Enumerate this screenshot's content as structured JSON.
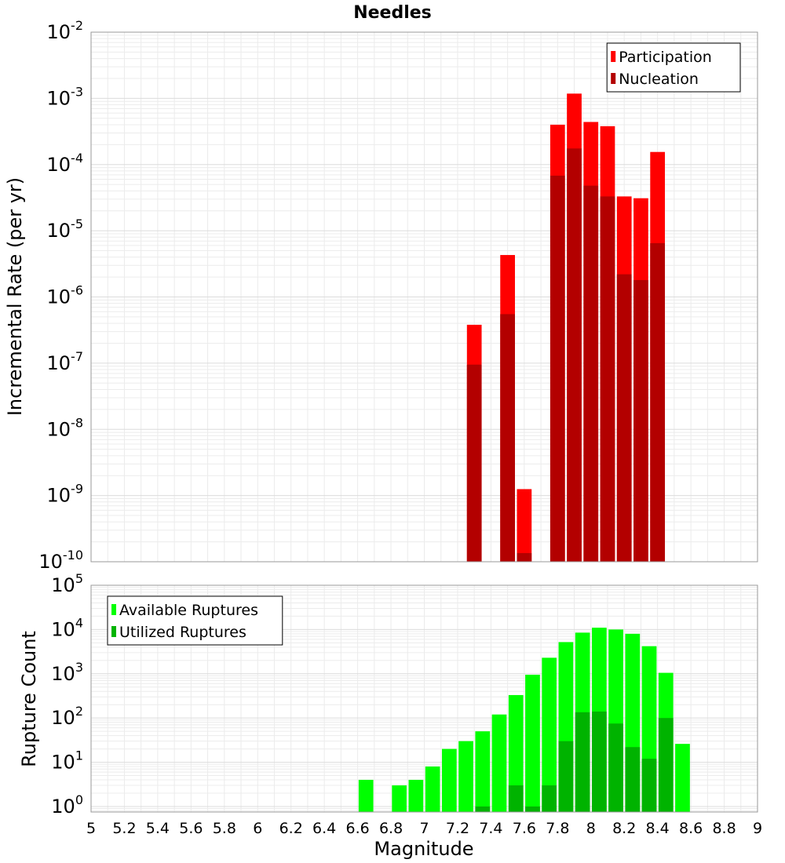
{
  "title": "Needles",
  "x_axis_label": "Magnitude",
  "chart_data": [
    {
      "type": "bar",
      "ylabel": "Incremental Rate (per yr)",
      "y_scale": "log",
      "ylim": [
        1e-10,
        0.01
      ],
      "xlim": [
        5,
        9
      ],
      "grid": true,
      "legend_position": "top-right",
      "x": [
        7.3,
        7.4,
        7.5,
        7.6,
        7.7,
        7.8,
        7.9,
        8.0,
        8.1,
        8.2,
        8.3,
        8.4,
        8.5
      ],
      "series": [
        {
          "name": "Participation",
          "color": "#ff0000",
          "values": [
            3.8e-07,
            null,
            4.3e-06,
            1.25e-09,
            null,
            0.0004,
            0.00118,
            0.00044,
            0.00038,
            3.3e-05,
            3.1e-05,
            0.000155,
            null
          ]
        },
        {
          "name": "Nucleation",
          "color": "#b30000",
          "values": [
            9.5e-08,
            null,
            5.5e-07,
            1.35e-10,
            null,
            6.8e-05,
            0.000175,
            4.8e-05,
            3.3e-05,
            2.2e-06,
            1.8e-06,
            6.5e-06,
            null
          ]
        }
      ]
    },
    {
      "type": "bar",
      "ylabel": "Rupture Count",
      "y_scale": "log",
      "ylim": [
        0.75,
        100000
      ],
      "xlim": [
        5,
        9
      ],
      "grid": true,
      "legend_position": "top-left",
      "x": [
        6.65,
        6.75,
        6.85,
        6.95,
        7.05,
        7.15,
        7.25,
        7.35,
        7.45,
        7.55,
        7.65,
        7.75,
        7.85,
        7.95,
        8.05,
        8.15,
        8.25,
        8.35,
        8.45,
        8.55
      ],
      "series": [
        {
          "name": "Available Ruptures",
          "color": "#00ff00",
          "values": [
            4,
            null,
            3,
            4,
            8,
            20,
            30,
            50,
            120,
            330,
            950,
            2300,
            5200,
            8500,
            11000,
            10000,
            8000,
            4200,
            1050,
            26
          ]
        },
        {
          "name": "Utilized Ruptures",
          "color": "#00b300",
          "values": [
            null,
            null,
            null,
            null,
            null,
            null,
            null,
            1,
            null,
            3,
            1,
            3,
            30,
            135,
            140,
            75,
            22,
            12,
            100,
            null
          ]
        }
      ]
    }
  ],
  "x_ticks": [
    "5",
    "5.2",
    "5.4",
    "5.6",
    "5.8",
    "6",
    "6.2",
    "6.4",
    "6.6",
    "6.8",
    "7",
    "7.2",
    "7.4",
    "7.6",
    "7.8",
    "8",
    "8.2",
    "8.4",
    "8.6",
    "8.8",
    "9"
  ],
  "top_y_ticks": [
    {
      "base": "10",
      "exp": "-2"
    },
    {
      "base": "10",
      "exp": "-3"
    },
    {
      "base": "10",
      "exp": "-4"
    },
    {
      "base": "10",
      "exp": "-5"
    },
    {
      "base": "10",
      "exp": "-6"
    },
    {
      "base": "10",
      "exp": "-7"
    },
    {
      "base": "10",
      "exp": "-8"
    },
    {
      "base": "10",
      "exp": "-9"
    },
    {
      "base": "10",
      "exp": "-10"
    }
  ],
  "bottom_y_ticks": [
    {
      "base": "10",
      "exp": "5"
    },
    {
      "base": "10",
      "exp": "4"
    },
    {
      "base": "10",
      "exp": "3"
    },
    {
      "base": "10",
      "exp": "2"
    },
    {
      "base": "10",
      "exp": "1"
    },
    {
      "base": "10",
      "exp": "0"
    }
  ]
}
